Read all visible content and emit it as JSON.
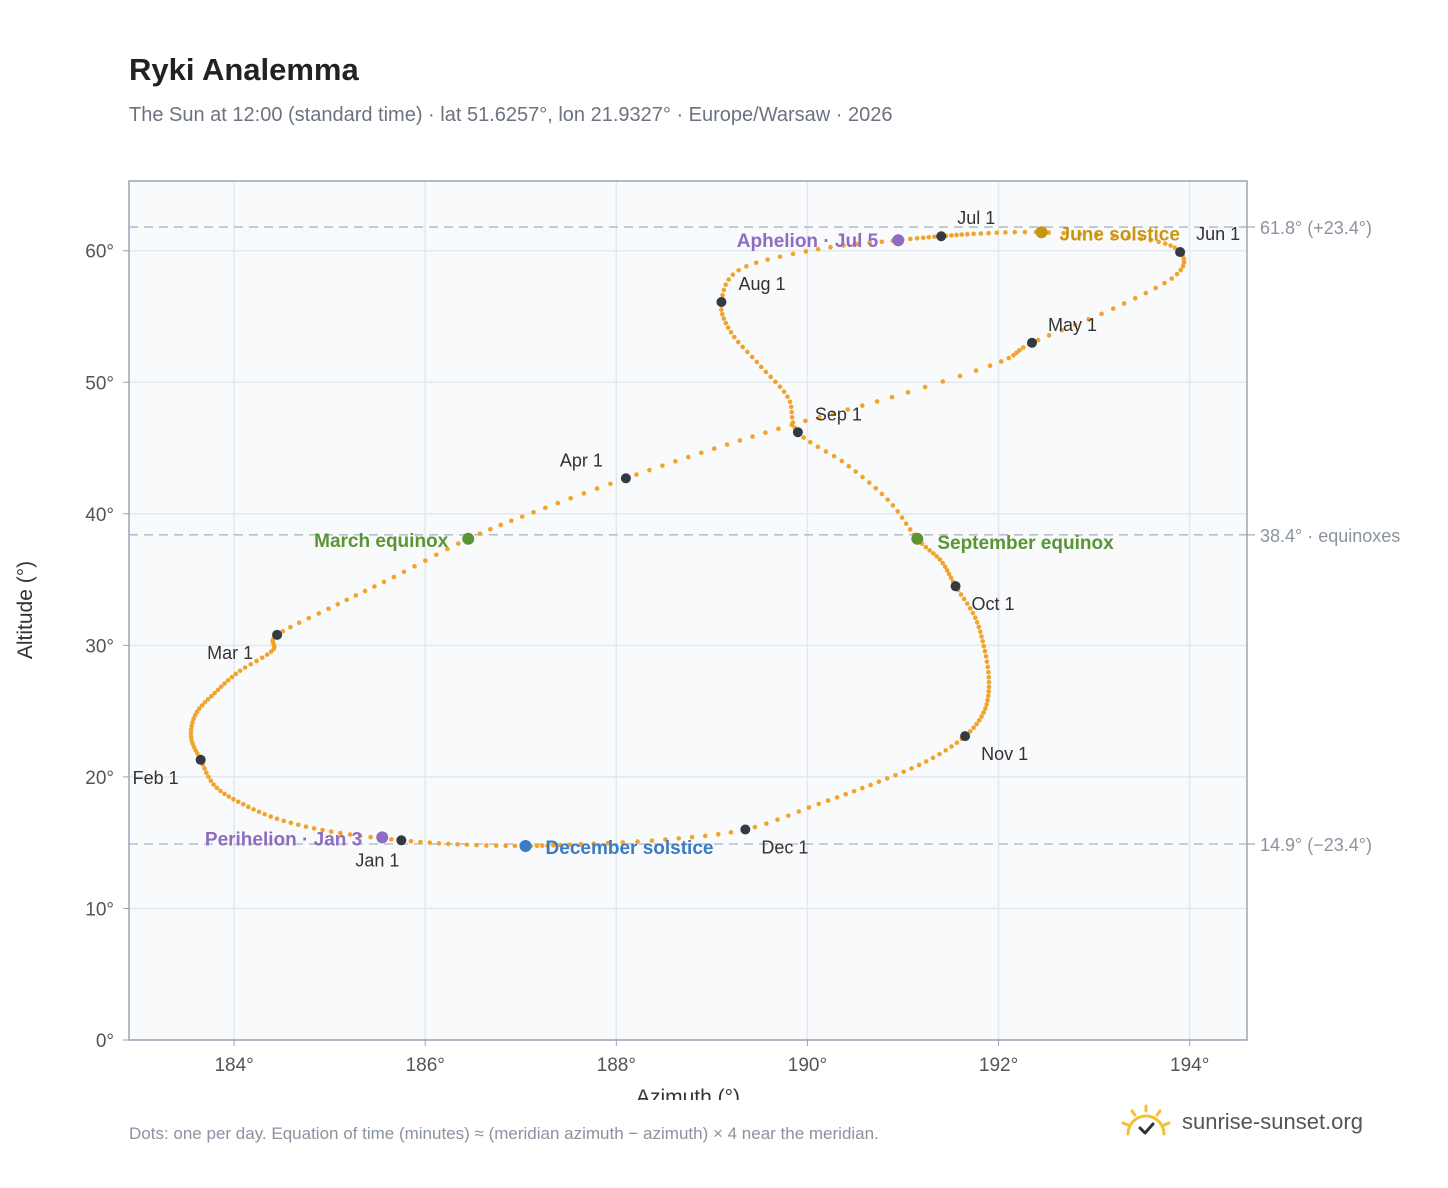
{
  "chart_data": {
    "type": "scatter",
    "title": "Ryki Analemma",
    "subtitle": "The Sun at 12:00 (standard time) · lat 51.6257°, lon 21.9327° · Europe/Warsaw · 2026",
    "xlabel": "Azimuth (°)",
    "ylabel": "Altitude (°)",
    "xlim": [
      182.9,
      194.6
    ],
    "ylim": [
      0,
      65.3
    ],
    "xticks": [
      184,
      186,
      188,
      190,
      192,
      194
    ],
    "xtick_labels": [
      "184°",
      "186°",
      "188°",
      "190°",
      "192°",
      "194°"
    ],
    "yticks": [
      0,
      10,
      20,
      30,
      40,
      50,
      60
    ],
    "ytick_labels": [
      "0°",
      "10°",
      "20°",
      "30°",
      "40°",
      "50°",
      "60°"
    ],
    "grid": true,
    "series_color": "#f2a32a",
    "daily_points": [
      [
        185.75,
        15.18
      ],
      [
        185.05,
        15.8
      ],
      [
        184.5,
        16.7
      ],
      [
        184.1,
        17.9
      ],
      [
        183.8,
        19.3
      ],
      [
        183.65,
        21.3
      ],
      [
        183.55,
        23.0
      ],
      [
        183.6,
        24.8
      ],
      [
        183.8,
        26.4
      ],
      [
        184.05,
        28.0
      ],
      [
        184.4,
        29.6
      ],
      [
        184.45,
        30.8
      ],
      [
        185.05,
        33.0
      ],
      [
        185.7,
        35.3
      ],
      [
        186.45,
        38.1
      ],
      [
        187.2,
        40.3
      ],
      [
        188.1,
        42.7
      ],
      [
        189.0,
        44.9
      ],
      [
        189.9,
        46.9
      ],
      [
        190.9,
        48.9
      ],
      [
        192.0,
        51.5
      ],
      [
        192.35,
        53.0
      ],
      [
        193.2,
        55.6
      ],
      [
        193.85,
        58.1
      ],
      [
        193.9,
        59.9
      ],
      [
        193.5,
        60.9
      ],
      [
        192.45,
        61.4
      ],
      [
        191.8,
        61.3
      ],
      [
        191.4,
        61.1
      ],
      [
        190.95,
        60.8
      ],
      [
        190.1,
        60.1
      ],
      [
        189.3,
        58.6
      ],
      [
        189.1,
        56.1
      ],
      [
        189.2,
        53.8
      ],
      [
        189.5,
        51.3
      ],
      [
        189.8,
        48.8
      ],
      [
        189.9,
        46.2
      ],
      [
        190.4,
        43.8
      ],
      [
        190.85,
        41.0
      ],
      [
        191.15,
        38.1
      ],
      [
        191.4,
        36.4
      ],
      [
        191.55,
        34.5
      ],
      [
        191.75,
        32.2
      ],
      [
        191.85,
        29.8
      ],
      [
        191.9,
        27.2
      ],
      [
        191.85,
        25.0
      ],
      [
        191.65,
        23.1
      ],
      [
        191.25,
        21.2
      ],
      [
        190.7,
        19.5
      ],
      [
        190.1,
        17.9
      ],
      [
        189.35,
        16.0
      ],
      [
        188.45,
        15.2
      ],
      [
        187.5,
        14.85
      ],
      [
        187.05,
        14.75
      ],
      [
        186.4,
        14.85
      ],
      [
        185.75,
        15.18
      ]
    ],
    "month_markers": [
      {
        "label": "Jan 1",
        "x": 185.75,
        "y": 15.18
      },
      {
        "label": "Feb 1",
        "x": 183.65,
        "y": 21.3
      },
      {
        "label": "Mar 1",
        "x": 184.45,
        "y": 30.8
      },
      {
        "label": "Apr 1",
        "x": 188.1,
        "y": 42.7
      },
      {
        "label": "May 1",
        "x": 192.35,
        "y": 53.0
      },
      {
        "label": "Jun 1",
        "x": 193.9,
        "y": 59.9
      },
      {
        "label": "Jul 1",
        "x": 191.4,
        "y": 61.1
      },
      {
        "label": "Aug 1",
        "x": 189.1,
        "y": 56.1
      },
      {
        "label": "Sep 1",
        "x": 189.9,
        "y": 46.2
      },
      {
        "label": "Oct 1",
        "x": 191.55,
        "y": 34.5
      },
      {
        "label": "Nov 1",
        "x": 191.65,
        "y": 23.1
      },
      {
        "label": "Dec 1",
        "x": 189.35,
        "y": 16.0
      }
    ],
    "events": [
      {
        "label": "June solstice",
        "x": 192.45,
        "y": 61.4,
        "color": "#c99410"
      },
      {
        "label": "Aphelion · Jul 5",
        "x": 190.95,
        "y": 60.8,
        "color": "#8e6cbf"
      },
      {
        "label": "March equinox",
        "x": 186.45,
        "y": 38.1,
        "color": "#5a9433"
      },
      {
        "label": "September equinox",
        "x": 191.15,
        "y": 38.1,
        "color": "#5a9433"
      },
      {
        "label": "Perihelion · Jan 3",
        "x": 185.55,
        "y": 15.4,
        "color": "#8e6cbf"
      },
      {
        "label": "December solstice",
        "x": 187.05,
        "y": 14.75,
        "color": "#3b7bc4"
      }
    ],
    "reference_lines": [
      {
        "y": 61.8,
        "label": "61.8° (+23.4°)"
      },
      {
        "y": 38.4,
        "label": "38.4° · equinoxes"
      },
      {
        "y": 14.9,
        "label": "14.9° (−23.4°)"
      }
    ]
  },
  "footnote": "Dots: one per day. Equation of time (minutes) ≈ (meridian azimuth − azimuth) × 4 near the meridian.",
  "brand": {
    "name": "sunrise-sunset.org",
    "icon": "sun-logo-icon",
    "color": "#f2c12e"
  }
}
